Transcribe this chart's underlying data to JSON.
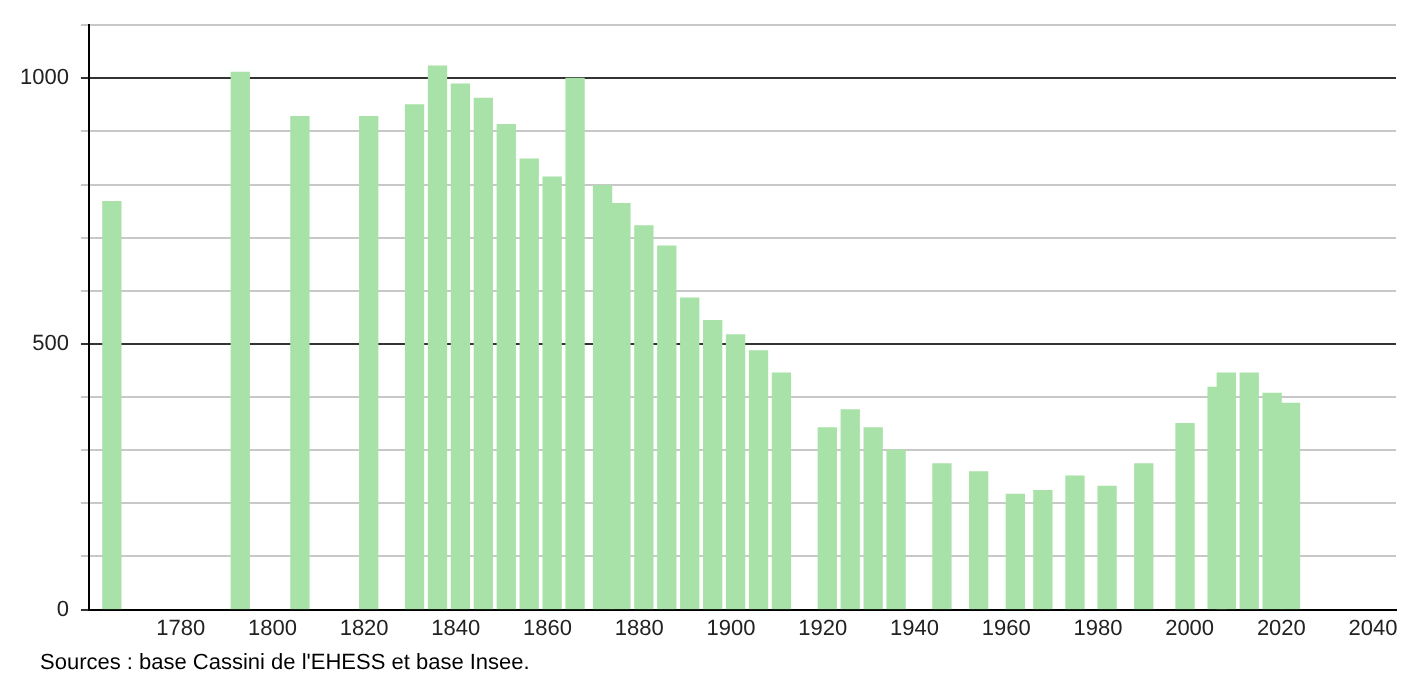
{
  "chart_data": {
    "type": "bar",
    "x": [
      1765,
      1793,
      1806,
      1821,
      1831,
      1836,
      1841,
      1846,
      1851,
      1856,
      1861,
      1866,
      1872,
      1876,
      1881,
      1886,
      1891,
      1896,
      1901,
      1906,
      1911,
      1921,
      1926,
      1931,
      1936,
      1946,
      1954,
      1962,
      1968,
      1975,
      1982,
      1990,
      1999,
      2006,
      2008,
      2013,
      2018,
      2022
    ],
    "values": [
      768,
      1011,
      928,
      928,
      950,
      1023,
      989,
      962,
      913,
      848,
      814,
      1000,
      798,
      764,
      722,
      684,
      586,
      544,
      517,
      487,
      445,
      342,
      376,
      342,
      300,
      274,
      259,
      217,
      224,
      251,
      232,
      274,
      350,
      418,
      445,
      445,
      407,
      388
    ],
    "color": "#a8e2a8",
    "xlim": [
      1760,
      2045
    ],
    "xticks": [
      1780,
      1800,
      1820,
      1840,
      1860,
      1880,
      1900,
      1920,
      1940,
      1960,
      1980,
      2000,
      2020,
      2040
    ],
    "ylim": [
      0,
      1100
    ],
    "yticks": [
      0,
      {
        "value": 100,
        "label": null
      },
      {
        "value": 200,
        "label": null
      },
      {
        "value": 300,
        "label": null
      },
      {
        "value": 400,
        "label": null
      },
      500,
      {
        "value": 600,
        "label": null
      },
      {
        "value": 700,
        "label": null
      },
      {
        "value": 800,
        "label": null
      },
      {
        "value": 900,
        "label": null
      },
      1000,
      {
        "value": 1100,
        "label": null
      }
    ],
    "grid": "y",
    "legend": false,
    "annotations": [
      "Sources : base Cassini de l'EHESS et base Insee."
    ]
  }
}
